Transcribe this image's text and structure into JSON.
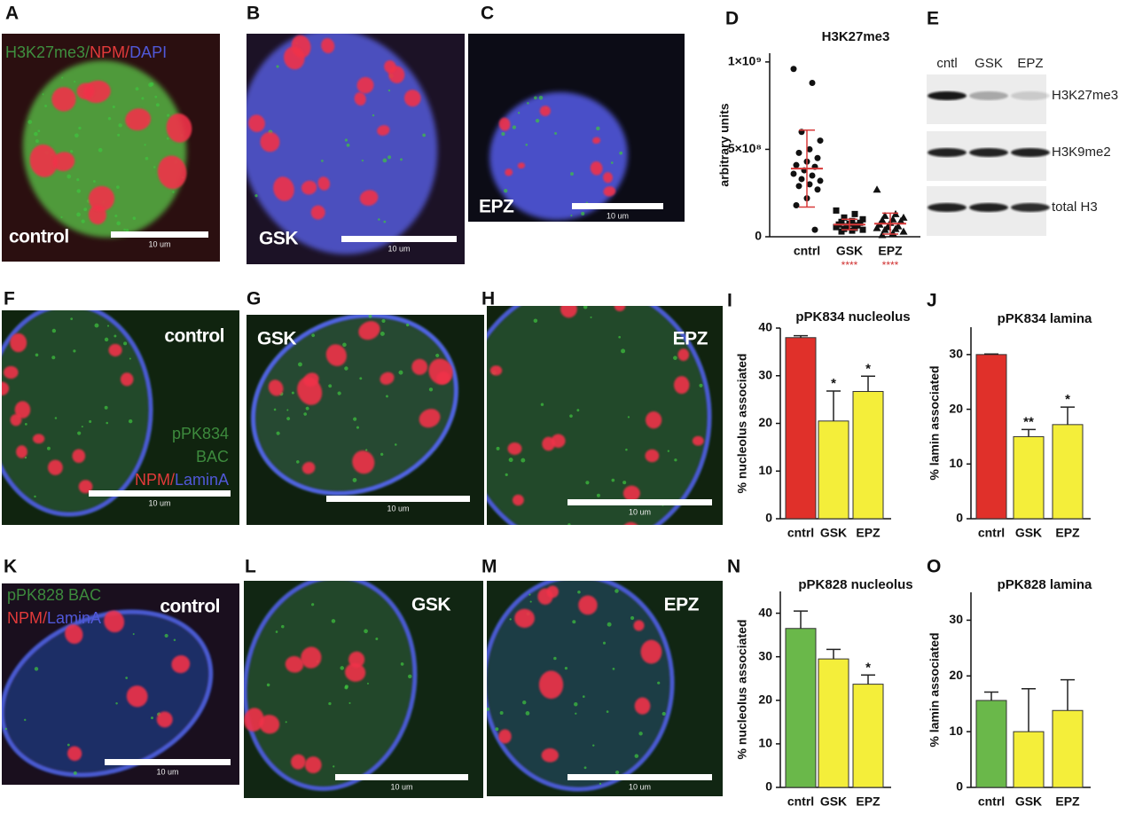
{
  "panels": [
    {
      "letter": "A",
      "label": "control",
      "scale": "10 um",
      "legend": [
        [
          {
            "text": "H3K27me3/",
            "color": "#3f8f3f"
          },
          {
            "text": "NPM/",
            "color": "#e23a3a"
          },
          {
            "text": "DAPI",
            "color": "#5058d8"
          }
        ]
      ]
    },
    {
      "letter": "B",
      "label": "GSK",
      "scale": "10 um"
    },
    {
      "letter": "C",
      "label": "EPZ",
      "scale": "10 um"
    },
    {
      "letter": "F",
      "label": "control",
      "scale": "10 um",
      "legend": [
        [
          {
            "text": "pPK834",
            "color": "#3d8a3d"
          }
        ],
        [
          {
            "text": "BAC",
            "color": "#3d8a3d"
          }
        ],
        [
          {
            "text": "NPM/",
            "color": "#e23a3a"
          },
          {
            "text": "LaminA",
            "color": "#5058d8"
          }
        ]
      ]
    },
    {
      "letter": "G",
      "label": "GSK",
      "scale": "10 um"
    },
    {
      "letter": "H",
      "label": "EPZ",
      "scale": "10 um"
    },
    {
      "letter": "K",
      "label": "control",
      "scale": "10 um",
      "legend": [
        [
          {
            "text": "pPK828 BAC",
            "color": "#3d8a3d"
          }
        ],
        [
          {
            "text": "NPM/",
            "color": "#e23a3a"
          },
          {
            "text": "LaminA",
            "color": "#5058d8"
          }
        ]
      ]
    },
    {
      "letter": "L",
      "label": "GSK",
      "scale": "10 um"
    },
    {
      "letter": "M",
      "label": "EPZ",
      "scale": "10 um"
    }
  ],
  "blot": {
    "letter": "E",
    "lanes": [
      "cntl",
      "GSK",
      "EPZ"
    ],
    "bands": [
      "H3K27me3",
      "H3K9me2",
      "total H3"
    ]
  },
  "chart_data": [
    {
      "type": "dot",
      "letter": "D",
      "title": "H3K27me3",
      "y_label": "arbitrary units",
      "categories": [
        "cntrl",
        "GSK",
        "EPZ"
      ],
      "markers": [
        "circle",
        "square",
        "triangle"
      ],
      "values": [
        [
          960000000,
          880000000,
          600000000,
          550000000,
          500000000,
          480000000,
          450000000,
          430000000,
          410000000,
          400000000,
          380000000,
          360000000,
          350000000,
          330000000,
          320000000,
          300000000,
          290000000,
          270000000,
          220000000,
          180000000,
          40000000
        ],
        [
          150000000,
          130000000,
          110000000,
          100000000,
          90000000,
          85000000,
          80000000,
          75000000,
          70000000,
          65000000,
          60000000,
          55000000,
          50000000,
          45000000,
          40000000,
          35000000,
          30000000
        ],
        [
          270000000,
          130000000,
          120000000,
          110000000,
          100000000,
          95000000,
          90000000,
          80000000,
          70000000,
          60000000,
          55000000,
          50000000,
          45000000,
          40000000,
          30000000,
          20000000,
          10000000
        ]
      ],
      "means": [
        390000000,
        70000000,
        75000000
      ],
      "sds": [
        220000000,
        30000000,
        60000000
      ],
      "mean_color": "#d83a3a",
      "annotations": [
        null,
        "****",
        "****"
      ],
      "annotation_color": "#d03030",
      "ylim": [
        0,
        1050000000
      ],
      "yticks": [
        0,
        {
          "value": 500000000,
          "label": "5×10⁸"
        },
        {
          "value": 1000000000,
          "label": "1×10⁹"
        }
      ]
    },
    {
      "type": "bar",
      "letter": "I",
      "title": "pPK834  nucleolus",
      "y_label": "% nucleolus associated",
      "categories": [
        "cntrl",
        "GSK",
        "EPZ"
      ],
      "values": [
        38,
        20.5,
        26.7
      ],
      "errors": [
        0.4,
        6.3,
        3.2
      ],
      "colors": [
        "#e0302a",
        "#f4ee3a",
        "#f4ee3a"
      ],
      "annotations": [
        null,
        "*",
        "*"
      ],
      "ylim": [
        0,
        40
      ],
      "yticks": [
        0,
        10,
        20,
        30,
        40
      ]
    },
    {
      "type": "bar",
      "letter": "J",
      "title": "pPK834 lamina",
      "y_label": "% lamin associated",
      "categories": [
        "cntrl",
        "GSK",
        "EPZ"
      ],
      "values": [
        30,
        15,
        17.2
      ],
      "errors": [
        0.1,
        1.3,
        3.2
      ],
      "colors": [
        "#e0302a",
        "#f4ee3a",
        "#f4ee3a"
      ],
      "annotations": [
        null,
        "**",
        "*"
      ],
      "ylim": [
        0,
        35
      ],
      "yticks": [
        0,
        10,
        20,
        30
      ]
    },
    {
      "type": "bar",
      "letter": "N",
      "title": "pPK828 nucleolus",
      "y_label": "% nucleolus associated",
      "categories": [
        "cntrl",
        "GSK",
        "EPZ"
      ],
      "values": [
        36.5,
        29.5,
        23.7
      ],
      "errors": [
        4,
        2.2,
        2.1
      ],
      "colors": [
        "#6ab84a",
        "#f4ee3a",
        "#f4ee3a"
      ],
      "annotations": [
        null,
        null,
        "*"
      ],
      "ylim": [
        0,
        45
      ],
      "yticks": [
        0,
        10,
        20,
        30,
        40
      ]
    },
    {
      "type": "bar",
      "letter": "O",
      "title": "pPK828 lamina",
      "y_label": "% lamin associated",
      "categories": [
        "cntrl",
        "GSK",
        "EPZ"
      ],
      "values": [
        15.6,
        10,
        13.8
      ],
      "errors": [
        1.5,
        7.7,
        5.5
      ],
      "colors": [
        "#6ab84a",
        "#f4ee3a",
        "#f4ee3a"
      ],
      "annotations": [
        null,
        null,
        null
      ],
      "ylim": [
        0,
        35
      ],
      "yticks": [
        0,
        10,
        20,
        30
      ]
    }
  ]
}
